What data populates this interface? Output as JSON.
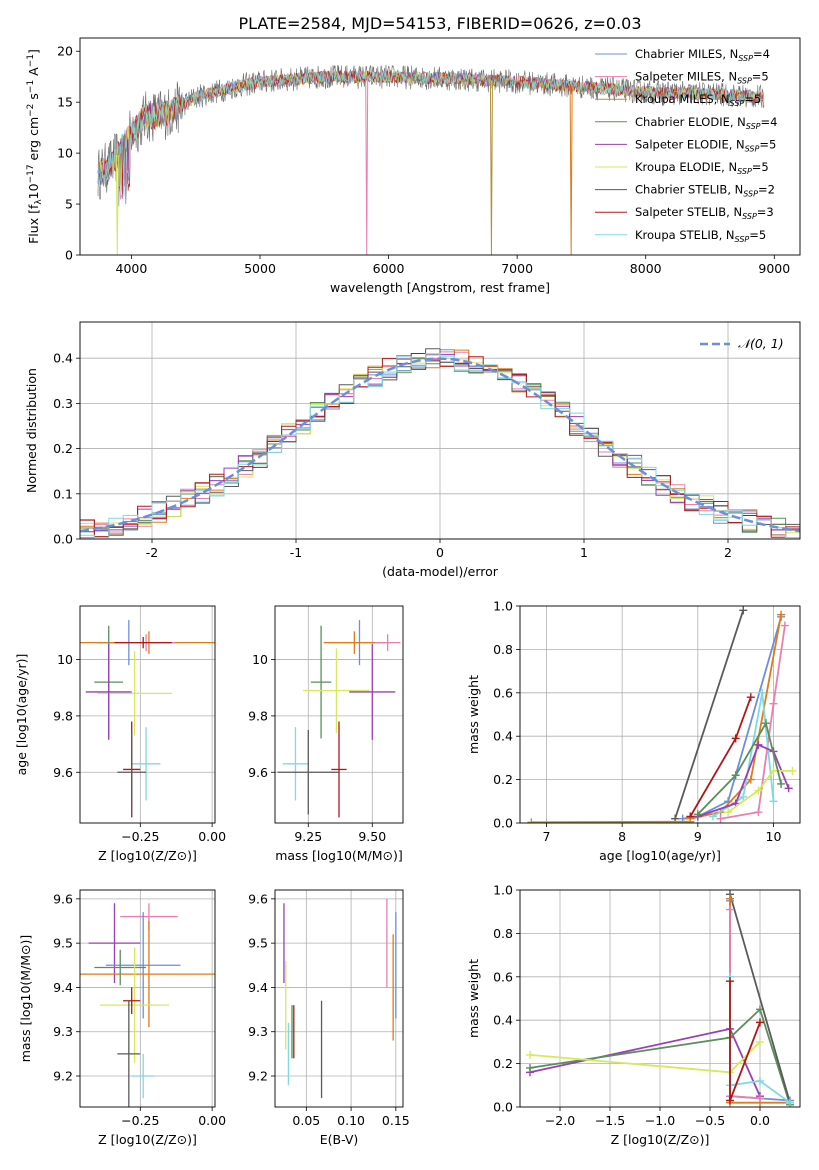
{
  "title": "PLATE=2584, MJD=54153, FIBERID=0626, z=0.03",
  "colors": {
    "Chabrier MILES": "#6b8fdc",
    "Salpeter MILES": "#e87fb0",
    "Kroupa MILES": "#b0903a",
    "Chabrier ELODIE": "#5a8f5a",
    "Salpeter ELODIE": "#9a3fb5",
    "Kroupa ELODIE": "#d6e85c",
    "Chabrier STELIB": "#5a5a5a",
    "Salpeter STELIB": "#b01818",
    "Kroupa STELIB": "#7fd9e0",
    "orange": "#e07a1a",
    "normal": "#6b8fdc",
    "grid": "#b0b0b0"
  },
  "chart_data": [
    {
      "id": "spectrum",
      "type": "line",
      "xlabel": "wavelength [Angstrom, rest frame]",
      "ylabel": "Flux [f_λ10^-17 erg cm^-2 s^-1 A^-1]",
      "xlim": [
        3600,
        9200
      ],
      "ylim": [
        0,
        21.3
      ],
      "xticks": [
        4000,
        5000,
        6000,
        7000,
        8000,
        9000
      ],
      "yticks": [
        0,
        5,
        10,
        15,
        20
      ],
      "grid": false,
      "legend_position": "top-right",
      "legend": [
        {
          "name": "Chabrier MILES",
          "label": "Chabrier MILES, N_SSP=4"
        },
        {
          "name": "Salpeter MILES",
          "label": "Salpeter MILES, N_SSP=5"
        },
        {
          "name": "Kroupa MILES",
          "label": "Kroupa MILES, N_SSP=5"
        },
        {
          "name": "Chabrier ELODIE",
          "label": "Chabrier ELODIE, N_SSP=4"
        },
        {
          "name": "Salpeter ELODIE",
          "label": "Salpeter ELODIE, N_SSP=5"
        },
        {
          "name": "Kroupa ELODIE",
          "label": "Kroupa ELODIE, N_SSP=5"
        },
        {
          "name": "Chabrier STELIB",
          "label": "Chabrier STELIB, N_SSP=2"
        },
        {
          "name": "Salpeter STELIB",
          "label": "Salpeter STELIB, N_SSP=3"
        },
        {
          "name": "Kroupa STELIB",
          "label": "Kroupa STELIB, N_SSP=5"
        }
      ],
      "continuum": {
        "x": [
          3700,
          3850,
          3950,
          4100,
          4300,
          4500,
          4800,
          5000,
          5500,
          6000,
          6500,
          7000,
          7500,
          8000,
          8500,
          8900
        ],
        "y": [
          7.5,
          9.0,
          11.0,
          13.5,
          14.0,
          15.5,
          16.5,
          17.0,
          17.5,
          17.5,
          17.3,
          17.0,
          16.5,
          16.0,
          15.8,
          15.5
        ]
      },
      "dips": [
        {
          "series": "Salpeter MILES",
          "x": 5830,
          "y": 0
        },
        {
          "series": "Kroupa MILES",
          "x": 6800,
          "y": 0
        },
        {
          "series": "orange",
          "x": 7420,
          "y": 0
        },
        {
          "series": "Kroupa ELODIE",
          "x": 3890,
          "y": 0
        }
      ]
    },
    {
      "id": "residuals",
      "type": "histogram",
      "xlabel": "(data-model)/error",
      "ylabel": "Normed distribution",
      "xlim": [
        -2.5,
        2.5
      ],
      "ylim": [
        0,
        0.48
      ],
      "xticks": [
        -2,
        -1,
        0,
        1,
        2
      ],
      "yticks": [
        0.0,
        0.1,
        0.2,
        0.3,
        0.4
      ],
      "grid": true,
      "legend_position": "top-right",
      "legend": [
        {
          "name": "normal",
          "label": "𝒩(0, 1)"
        }
      ],
      "bin_width": 0.1,
      "series": [
        "Chabrier MILES",
        "Salpeter MILES",
        "orange",
        "Chabrier ELODIE",
        "Salpeter ELODIE",
        "Kroupa ELODIE",
        "Chabrier STELIB",
        "Salpeter STELIB",
        "Kroupa STELIB"
      ],
      "reference_curve": "N(0,1)"
    },
    {
      "id": "age_vs_Z",
      "type": "errorbar",
      "xlabel": "Z [log10(Z/Z⊙)]",
      "ylabel": "age [log10(age/yr)]",
      "xlim": [
        -0.46,
        0.01
      ],
      "ylim": [
        9.42,
        10.19
      ],
      "xticks": [
        -0.25,
        0.0
      ],
      "xticklabels": [
        "−0.25",
        "0.00"
      ],
      "yticks": [
        9.6,
        9.8,
        10.0
      ],
      "grid": true,
      "points": [
        {
          "series": "Chabrier MILES",
          "x": -0.29,
          "y": 10.06,
          "xerr": 0.11,
          "yerr": 0.08
        },
        {
          "series": "orange",
          "x": -0.22,
          "y": 10.06,
          "xerr": 0.24,
          "yerr": 0.04
        },
        {
          "series": "Salpeter MILES",
          "x": -0.23,
          "y": 10.06,
          "xerr": 0.1,
          "yerr": 0.03
        },
        {
          "series": "Salpeter STELIB",
          "x": -0.24,
          "y": 10.06,
          "xerr": 0.1,
          "yerr": 0.02
        },
        {
          "series": "Chabrier ELODIE",
          "x": -0.36,
          "y": 9.92,
          "xerr": 0.05,
          "yerr": 0.2
        },
        {
          "series": "Kroupa ELODIE",
          "x": -0.27,
          "y": 9.88,
          "xerr": 0.13,
          "yerr": 0.15
        },
        {
          "series": "Salpeter ELODIE",
          "x": -0.36,
          "y": 9.885,
          "xerr": 0.08,
          "yerr": 0.17
        },
        {
          "series": "Kroupa STELIB",
          "x": -0.23,
          "y": 9.63,
          "xerr": 0.05,
          "yerr": 0.13
        },
        {
          "series": "Salpeter STELIB",
          "x": -0.28,
          "y": 9.61,
          "xerr": 0.03,
          "yerr": 0.17
        },
        {
          "series": "Chabrier STELIB",
          "x": -0.28,
          "y": 9.6,
          "xerr": 0.05,
          "yerr": 0.15
        }
      ]
    },
    {
      "id": "age_vs_mass",
      "type": "errorbar",
      "xlabel": "mass [log10(M/M⊙)]",
      "ylabel": "",
      "xlim": [
        9.12,
        9.62
      ],
      "ylim": [
        9.42,
        10.19
      ],
      "xticks": [
        9.25,
        9.5
      ],
      "xticklabels": [
        "9.25",
        "9.50"
      ],
      "yticks": [
        9.6,
        9.8,
        10.0
      ],
      "grid": true,
      "points": [
        {
          "series": "Chabrier MILES",
          "x": 9.45,
          "y": 10.06,
          "xerr": 0.12,
          "yerr": 0.08
        },
        {
          "series": "orange",
          "x": 9.43,
          "y": 10.06,
          "xerr": 0.12,
          "yerr": 0.04
        },
        {
          "series": "Salpeter MILES",
          "x": 9.56,
          "y": 10.06,
          "xerr": 0.05,
          "yerr": 0.03
        },
        {
          "series": "Chabrier ELODIE",
          "x": 9.3,
          "y": 9.92,
          "xerr": 0.04,
          "yerr": 0.2
        },
        {
          "series": "Kroupa ELODIE",
          "x": 9.36,
          "y": 9.89,
          "xerr": 0.13,
          "yerr": 0.15
        },
        {
          "series": "Salpeter ELODIE",
          "x": 9.5,
          "y": 9.885,
          "xerr": 0.09,
          "yerr": 0.17
        },
        {
          "series": "Kroupa STELIB",
          "x": 9.2,
          "y": 9.63,
          "xerr": 0.05,
          "yerr": 0.13
        },
        {
          "series": "Salpeter STELIB",
          "x": 9.37,
          "y": 9.61,
          "xerr": 0.03,
          "yerr": 0.17
        },
        {
          "series": "Chabrier STELIB",
          "x": 9.25,
          "y": 9.6,
          "xerr": 0.12,
          "yerr": 0.15
        }
      ]
    },
    {
      "id": "mass_weight_vs_age",
      "type": "line",
      "xlabel": "age [log10(age/yr)]",
      "ylabel": "mass weight",
      "xlim": [
        6.65,
        10.35
      ],
      "ylim": [
        0,
        1.0
      ],
      "xticks": [
        7,
        8,
        9,
        10
      ],
      "yticks": [
        0.0,
        0.2,
        0.4,
        0.6,
        0.8,
        1.0
      ],
      "grid": true,
      "series": [
        {
          "series": "Chabrier STELIB",
          "x": [
            8.7,
            9.6
          ],
          "y": [
            0.02,
            0.98
          ]
        },
        {
          "series": "Chabrier MILES",
          "x": [
            8.8,
            9.0,
            9.4,
            10.1
          ],
          "y": [
            0.02,
            0.03,
            0.1,
            0.95
          ]
        },
        {
          "series": "orange",
          "x": [
            8.9,
            9.3,
            9.7,
            10.1
          ],
          "y": [
            0.02,
            0.05,
            0.2,
            0.96
          ]
        },
        {
          "series": "Salpeter MILES",
          "x": [
            9.3,
            9.8,
            10.0,
            10.15
          ],
          "y": [
            0.02,
            0.05,
            0.55,
            0.91
          ]
        },
        {
          "series": "Salpeter STELIB",
          "x": [
            8.9,
            9.5,
            9.7
          ],
          "y": [
            0.03,
            0.39,
            0.58
          ]
        },
        {
          "series": "Kroupa STELIB",
          "x": [
            9.2,
            9.6,
            9.85,
            10.0
          ],
          "y": [
            0.03,
            0.12,
            0.6,
            0.1
          ]
        },
        {
          "series": "Salpeter ELODIE",
          "x": [
            9.0,
            9.5,
            9.8,
            10.0,
            10.2
          ],
          "y": [
            0.03,
            0.09,
            0.36,
            0.33,
            0.16
          ]
        },
        {
          "series": "Kroupa ELODIE",
          "x": [
            9.4,
            9.8,
            10.0,
            10.25
          ],
          "y": [
            0.05,
            0.15,
            0.24,
            0.24
          ]
        },
        {
          "series": "Chabrier ELODIE",
          "x": [
            9.0,
            9.5,
            9.9,
            10.1
          ],
          "y": [
            0.04,
            0.22,
            0.46,
            0.18
          ]
        },
        {
          "series": "Kroupa MILES",
          "x": [
            6.8,
            8.9
          ],
          "y": [
            0.003,
            0.006
          ]
        }
      ]
    },
    {
      "id": "mass_vs_Z",
      "type": "errorbar",
      "xlabel": "Z [log10(Z/Z⊙)]",
      "ylabel": "mass [log10(M/M⊙)]",
      "xlim": [
        -0.46,
        0.01
      ],
      "ylim": [
        9.13,
        9.62
      ],
      "xticks": [
        -0.25,
        0.0
      ],
      "xticklabels": [
        "−0.25",
        "0.00"
      ],
      "yticks": [
        9.2,
        9.3,
        9.4,
        9.5,
        9.6
      ],
      "grid": true,
      "points": [
        {
          "series": "Salpeter MILES",
          "x": -0.22,
          "y": 9.56,
          "xerr": 0.1,
          "yerr": 0.03
        },
        {
          "series": "Salpeter ELODIE",
          "x": -0.34,
          "y": 9.5,
          "xerr": 0.09,
          "yerr": 0.09
        },
        {
          "series": "Chabrier MILES",
          "x": -0.24,
          "y": 9.45,
          "xerr": 0.13,
          "yerr": 0.12
        },
        {
          "series": "orange",
          "x": -0.22,
          "y": 9.43,
          "xerr": 0.24,
          "yerr": 0.12
        },
        {
          "series": "Chabrier ELODIE",
          "x": -0.32,
          "y": 9.445,
          "xerr": 0.09,
          "yerr": 0.04
        },
        {
          "series": "Kroupa ELODIE",
          "x": -0.27,
          "y": 9.36,
          "xerr": 0.12,
          "yerr": 0.13
        },
        {
          "series": "Salpeter STELIB",
          "x": -0.28,
          "y": 9.37,
          "xerr": 0.03,
          "yerr": 0.03
        },
        {
          "series": "Chabrier STELIB",
          "x": -0.29,
          "y": 9.25,
          "xerr": 0.04,
          "yerr": 0.12
        },
        {
          "series": "Kroupa STELIB",
          "x": -0.24,
          "y": 9.2,
          "xerr": 0.04,
          "yerr": 0.05
        }
      ]
    },
    {
      "id": "mass_vs_ebv",
      "type": "errorbar",
      "xlabel": "E(B-V)",
      "ylabel": "",
      "xlim": [
        0.015,
        0.158
      ],
      "ylim": [
        9.13,
        9.62
      ],
      "xticks": [
        0.05,
        0.1,
        0.15
      ],
      "xticklabels": [
        "0.05",
        "0.10",
        "0.15"
      ],
      "yticks": [
        9.2,
        9.3,
        9.4,
        9.5,
        9.6
      ],
      "grid": true,
      "points": [
        {
          "series": "Salpeter ELODIE",
          "x": 0.025,
          "y": 9.5,
          "xerr": 0,
          "yerr": 0.09
        },
        {
          "series": "Kroupa ELODIE",
          "x": 0.027,
          "y": 9.36,
          "xerr": 0,
          "yerr": 0.1
        },
        {
          "series": "Kroupa STELIB",
          "x": 0.03,
          "y": 9.25,
          "xerr": 0,
          "yerr": 0.07
        },
        {
          "series": "Chabrier ELODIE",
          "x": 0.034,
          "y": 9.3,
          "xerr": 0,
          "yerr": 0.06
        },
        {
          "series": "Salpeter STELIB",
          "x": 0.036,
          "y": 9.3,
          "xerr": 0,
          "yerr": 0.06
        },
        {
          "series": "Chabrier STELIB",
          "x": 0.067,
          "y": 9.26,
          "xerr": 0,
          "yerr": 0.11
        },
        {
          "series": "Salpeter MILES",
          "x": 0.14,
          "y": 9.5,
          "xerr": 0,
          "yerr": 0.1
        },
        {
          "series": "orange",
          "x": 0.147,
          "y": 9.4,
          "xerr": 0,
          "yerr": 0.12
        },
        {
          "series": "Chabrier MILES",
          "x": 0.15,
          "y": 9.45,
          "xerr": 0,
          "yerr": 0.12
        }
      ]
    },
    {
      "id": "mass_weight_vs_Z",
      "type": "line",
      "xlabel": "Z [log10(Z/Z⊙)]",
      "ylabel": "mass weight",
      "xlim": [
        -2.4,
        0.4
      ],
      "ylim": [
        0,
        1.0
      ],
      "xticks": [
        -2.0,
        -1.5,
        -1.0,
        -0.5,
        0.0
      ],
      "xticklabels": [
        "−2.0",
        "−1.5",
        "−1.0",
        "−0.5",
        "0.0"
      ],
      "yticks": [
        0.0,
        0.2,
        0.4,
        0.6,
        0.8,
        1.0
      ],
      "grid": true,
      "series": [
        {
          "series": "Salpeter ELODIE",
          "x": [
            -2.3,
            -0.3,
            0.0
          ],
          "y": [
            0.16,
            0.36,
            0.05
          ]
        },
        {
          "series": "Chabrier ELODIE",
          "x": [
            -2.3,
            -0.3,
            0.0,
            0.3
          ],
          "y": [
            0.18,
            0.32,
            0.45,
            0.01
          ]
        },
        {
          "series": "Kroupa ELODIE",
          "x": [
            -2.3,
            -0.3,
            0.0
          ],
          "y": [
            0.24,
            0.16,
            0.3
          ]
        },
        {
          "series": "Chabrier STELIB",
          "x": [
            -0.3,
            0.3
          ],
          "y": [
            0.98,
            0.02
          ]
        },
        {
          "series": "Chabrier MILES",
          "x": [
            -0.3,
            -0.3,
            0.3
          ],
          "y": [
            0.95,
            0.05,
            0.03
          ]
        },
        {
          "series": "orange",
          "x": [
            -0.3,
            -0.3,
            0.0,
            0.3
          ],
          "y": [
            0.96,
            0.02,
            0.02,
            0.02
          ]
        },
        {
          "series": "Salpeter MILES",
          "x": [
            -0.3,
            -0.3,
            0.0
          ],
          "y": [
            0.91,
            0.05,
            0.04
          ]
        },
        {
          "series": "Kroupa STELIB",
          "x": [
            -0.3,
            -0.3,
            0.0,
            0.3
          ],
          "y": [
            0.6,
            0.1,
            0.12,
            0.02
          ]
        },
        {
          "series": "Salpeter STELIB",
          "x": [
            -0.3,
            -0.3,
            0.0
          ],
          "y": [
            0.58,
            0.03,
            0.39
          ]
        }
      ]
    }
  ]
}
